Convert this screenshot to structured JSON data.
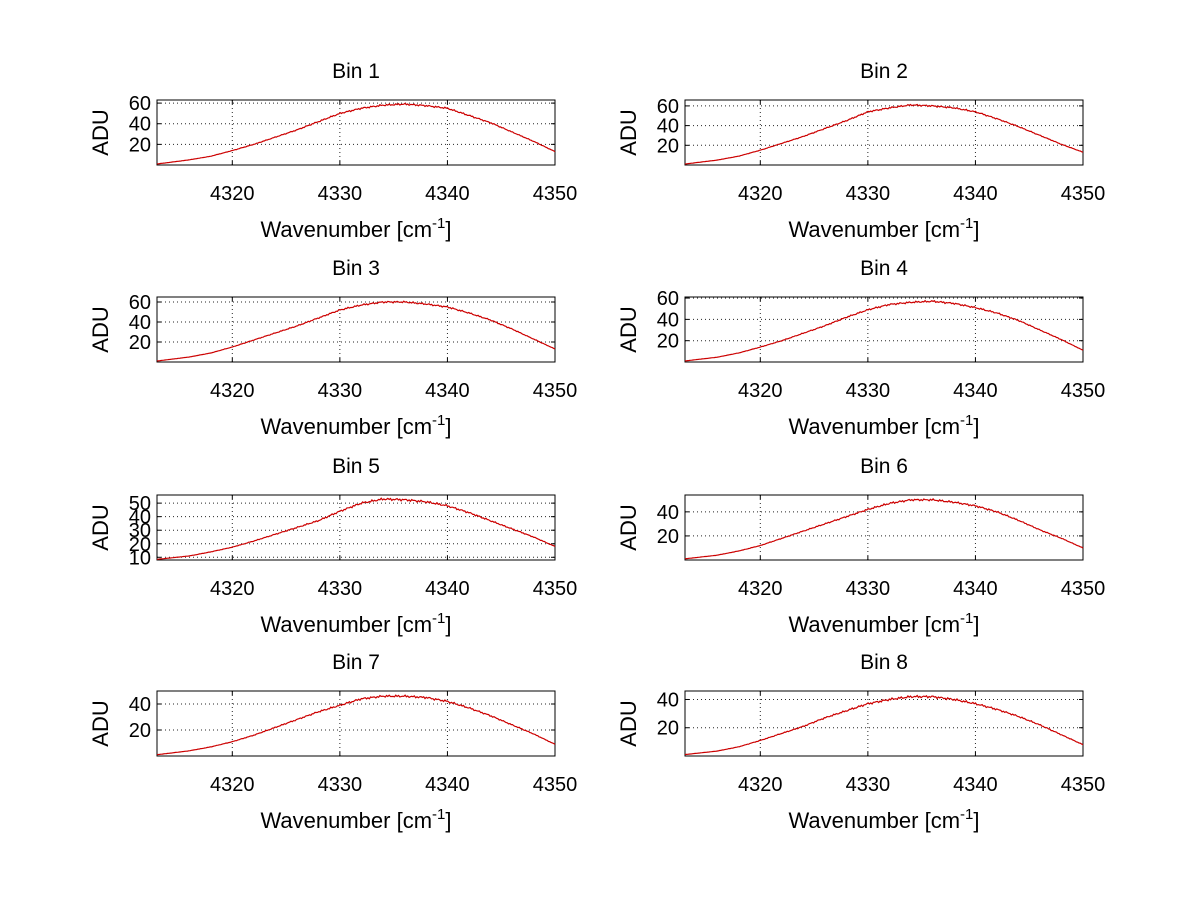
{
  "chart_data": [
    {
      "type": "line",
      "title": "Bin 1",
      "xlabel": "Wavenumber [cm",
      "xlabel_sup": "-1",
      "xlabel_end": "]",
      "ylabel": "ADU",
      "xlim": [
        4313,
        4350
      ],
      "ylim": [
        0,
        63
      ],
      "xticks": [
        4320,
        4330,
        4340,
        4350
      ],
      "yticks": [
        20,
        40,
        60
      ],
      "series": [
        {
          "name": "spectrum",
          "color": "#cc0000",
          "x": [
            4313,
            4316,
            4318,
            4320,
            4322,
            4324,
            4326,
            4328,
            4330,
            4332,
            4334,
            4336,
            4338,
            4340,
            4342,
            4344,
            4346,
            4348,
            4350
          ],
          "y": [
            1,
            5,
            8.5,
            14,
            20,
            27,
            34,
            42,
            50,
            55,
            58,
            59,
            57.5,
            55,
            48,
            41,
            32,
            23,
            13
          ]
        }
      ]
    },
    {
      "type": "line",
      "title": "Bin 2",
      "xlabel": "Wavenumber [cm",
      "xlabel_sup": "-1",
      "xlabel_end": "]",
      "ylabel": "ADU",
      "xlim": [
        4313,
        4350
      ],
      "ylim": [
        0,
        66
      ],
      "xticks": [
        4320,
        4330,
        4340,
        4350
      ],
      "yticks": [
        20,
        40,
        60
      ],
      "series": [
        {
          "name": "spectrum",
          "color": "#cc0000",
          "x": [
            4313,
            4316,
            4318,
            4320,
            4322,
            4324,
            4326,
            4328,
            4330,
            4332,
            4334,
            4336,
            4338,
            4340,
            4342,
            4344,
            4346,
            4348,
            4350
          ],
          "y": [
            1,
            5,
            9,
            15,
            22,
            29,
            37,
            45,
            54,
            58,
            61,
            60,
            58,
            54,
            47,
            39,
            30,
            21,
            13
          ]
        }
      ]
    },
    {
      "type": "line",
      "title": "Bin 3",
      "xlabel": "Wavenumber [cm",
      "xlabel_sup": "-1",
      "xlabel_end": "]",
      "ylabel": "ADU",
      "xlim": [
        4313,
        4350
      ],
      "ylim": [
        0,
        65
      ],
      "xticks": [
        4320,
        4330,
        4340,
        4350
      ],
      "yticks": [
        20,
        40,
        60
      ],
      "series": [
        {
          "name": "spectrum",
          "color": "#cc0000",
          "x": [
            4313,
            4316,
            4318,
            4320,
            4322,
            4324,
            4326,
            4328,
            4330,
            4332,
            4334,
            4336,
            4338,
            4340,
            4342,
            4344,
            4346,
            4348,
            4350
          ],
          "y": [
            1,
            5,
            9,
            15,
            22,
            29,
            36,
            44,
            52,
            57,
            60,
            60,
            58,
            55,
            49,
            42,
            33,
            23,
            13
          ]
        }
      ]
    },
    {
      "type": "line",
      "title": "Bin 4",
      "xlabel": "Wavenumber [cm",
      "xlabel_sup": "-1",
      "xlabel_end": "]",
      "ylabel": "ADU",
      "xlim": [
        4313,
        4350
      ],
      "ylim": [
        0,
        61
      ],
      "xticks": [
        4320,
        4330,
        4340,
        4350
      ],
      "yticks": [
        20,
        40,
        60
      ],
      "series": [
        {
          "name": "spectrum",
          "color": "#cc0000",
          "x": [
            4313,
            4316,
            4318,
            4320,
            4322,
            4324,
            4326,
            4328,
            4330,
            4332,
            4334,
            4336,
            4338,
            4340,
            4342,
            4344,
            4346,
            4348,
            4350
          ],
          "y": [
            1,
            4.5,
            8.5,
            14,
            20,
            27,
            34,
            42,
            49,
            54,
            56,
            57,
            55,
            51,
            46,
            39,
            30,
            21,
            11
          ]
        }
      ]
    },
    {
      "type": "line",
      "title": "Bin 5",
      "xlabel": "Wavenumber [cm",
      "xlabel_sup": "-1",
      "xlabel_end": "]",
      "ylabel": "ADU",
      "xlim": [
        4313,
        4350
      ],
      "ylim": [
        8,
        56
      ],
      "xticks": [
        4320,
        4330,
        4340,
        4350
      ],
      "yticks": [
        10,
        20,
        30,
        40,
        50
      ],
      "series": [
        {
          "name": "spectrum",
          "color": "#cc0000",
          "x": [
            4313,
            4316,
            4318,
            4320,
            4322,
            4324,
            4326,
            4328,
            4330,
            4332,
            4334,
            4336,
            4338,
            4340,
            4342,
            4344,
            4346,
            4348,
            4350
          ],
          "y": [
            8.5,
            11,
            14,
            17.5,
            22,
            27,
            32,
            37,
            44,
            50,
            53,
            52.5,
            51,
            48,
            43,
            37,
            31,
            25,
            18
          ]
        }
      ]
    },
    {
      "type": "line",
      "title": "Bin 6",
      "xlabel": "Wavenumber [cm",
      "xlabel_sup": "-1",
      "xlabel_end": "]",
      "ylabel": "ADU",
      "xlim": [
        4313,
        4350
      ],
      "ylim": [
        0,
        54
      ],
      "xticks": [
        4320,
        4330,
        4340,
        4350
      ],
      "yticks": [
        20,
        40
      ],
      "series": [
        {
          "name": "spectrum",
          "color": "#cc0000",
          "x": [
            4313,
            4316,
            4318,
            4320,
            4322,
            4324,
            4326,
            4328,
            4330,
            4332,
            4334,
            4336,
            4338,
            4340,
            4342,
            4344,
            4346,
            4348,
            4350
          ],
          "y": [
            1,
            4,
            7.5,
            12,
            18,
            24,
            30,
            36,
            42,
            47,
            50,
            50,
            48,
            45,
            40,
            33,
            25,
            18,
            10
          ]
        }
      ]
    },
    {
      "type": "line",
      "title": "Bin 7",
      "xlabel": "Wavenumber [cm",
      "xlabel_sup": "-1",
      "xlabel_end": "]",
      "ylabel": "ADU",
      "xlim": [
        4313,
        4350
      ],
      "ylim": [
        0,
        50
      ],
      "xticks": [
        4320,
        4330,
        4340,
        4350
      ],
      "yticks": [
        20,
        40
      ],
      "series": [
        {
          "name": "spectrum",
          "color": "#cc0000",
          "x": [
            4313,
            4316,
            4318,
            4320,
            4322,
            4324,
            4326,
            4328,
            4330,
            4332,
            4334,
            4336,
            4338,
            4340,
            4342,
            4344,
            4346,
            4348,
            4350
          ],
          "y": [
            1,
            4,
            7,
            11,
            16,
            22,
            28,
            34,
            39,
            44,
            46,
            46,
            45,
            42,
            37,
            31,
            24,
            17,
            9
          ]
        }
      ]
    },
    {
      "type": "line",
      "title": "Bin 8",
      "xlabel": "Wavenumber [cm",
      "xlabel_sup": "-1",
      "xlabel_end": "]",
      "ylabel": "ADU",
      "xlim": [
        4313,
        4350
      ],
      "ylim": [
        0,
        46
      ],
      "xticks": [
        4320,
        4330,
        4340,
        4350
      ],
      "yticks": [
        20,
        40
      ],
      "series": [
        {
          "name": "spectrum",
          "color": "#cc0000",
          "x": [
            4313,
            4316,
            4318,
            4320,
            4322,
            4324,
            4326,
            4328,
            4330,
            4332,
            4334,
            4336,
            4338,
            4340,
            4342,
            4344,
            4346,
            4348,
            4350
          ],
          "y": [
            1,
            3.5,
            6.5,
            11,
            16,
            21,
            27,
            32,
            37,
            40,
            42,
            42,
            40,
            37,
            33,
            28,
            22,
            15,
            8
          ]
        }
      ]
    }
  ]
}
